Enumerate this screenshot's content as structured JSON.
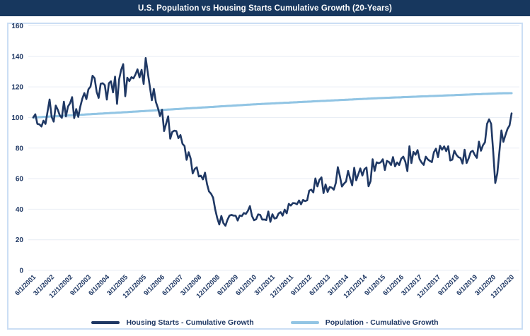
{
  "title": "U.S. Population vs Housing Starts Cumulative Growth (20-Years)",
  "colors": {
    "title_bar_bg": "#17375E",
    "title_text": "#FFFFFF",
    "housing_line": "#1F3864",
    "population_line": "#92C5E4",
    "chart_border": "#CBDEF4",
    "gridline": "#E9EEF5",
    "axis_text": "#1F3864",
    "background": "#FFFFFF"
  },
  "legend": {
    "items": [
      {
        "label": "Housing Starts - Cumulative Growth",
        "color": "#1F3864"
      },
      {
        "label": "Population - Cumulative Growth",
        "color": "#92C5E4"
      }
    ]
  },
  "chart_data": {
    "type": "line",
    "title": "U.S. Population vs Housing Starts Cumulative Growth (20-Years)",
    "x_start": "6/1/2001",
    "x_end": "12/1/2020",
    "x_frequency": "monthly",
    "x_points": 235,
    "x_tick_every_n_months": 9,
    "x_tick_labels": [
      "6/1/2001",
      "3/1/2002",
      "12/1/2002",
      "9/1/2003",
      "6/1/2004",
      "3/1/2005",
      "12/1/2005",
      "9/1/2006",
      "6/1/2007",
      "3/1/2008",
      "12/1/2008",
      "9/1/2009",
      "6/1/2010",
      "3/1/2011",
      "12/1/2011",
      "9/1/2012",
      "6/1/2013",
      "3/1/2014",
      "12/1/2014",
      "9/1/2015",
      "6/1/2016",
      "3/1/2017",
      "12/1/2017",
      "9/1/2018",
      "6/1/2019",
      "3/1/2020",
      "12/1/2020"
    ],
    "ylim": [
      0,
      160
    ],
    "y_ticks": [
      0,
      20,
      40,
      60,
      80,
      100,
      120,
      140,
      160
    ],
    "grid": "horizontal",
    "legend_position": "bottom",
    "series": [
      {
        "name": "Housing Starts - Cumulative Growth",
        "color": "#1F3864",
        "index_base": "100 = 6/1/2001",
        "values": [
          100.0,
          102.1,
          95.8,
          95.5,
          94.1,
          97.9,
          95.8,
          103.8,
          111.8,
          100.4,
          97.3,
          107.8,
          105.0,
          101.2,
          99.8,
          110.3,
          100.7,
          107.2,
          109.3,
          113.3,
          99.6,
          105.5,
          100.4,
          107.0,
          112.3,
          116.0,
          112.0,
          118.5,
          120.2,
          127.3,
          125.7,
          116.8,
          112.8,
          122.1,
          122.4,
          121.1,
          111.7,
          122.4,
          123.7,
          116.4,
          126.7,
          108.9,
          124.8,
          131.1,
          134.9,
          113.9,
          126.0,
          123.8,
          126.4,
          125.6,
          128.1,
          131.5,
          126.2,
          131.2,
          121.9,
          138.9,
          129.5,
          120.4,
          111.3,
          118.7,
          110.1,
          106.2,
          100.9,
          105.1,
          91.1,
          96.0,
          100.8,
          86.1,
          90.5,
          91.4,
          91.1,
          86.5,
          88.5,
          82.8,
          81.3,
          72.3,
          77.3,
          73.2,
          63.4,
          66.3,
          67.4,
          61.4,
          61.9,
          59.5,
          63.9,
          56.4,
          51.6,
          50.1,
          47.5,
          39.9,
          34.2,
          30.0,
          35.6,
          30.9,
          29.2,
          33.0,
          35.8,
          36.3,
          35.8,
          35.8,
          32.6,
          35.9,
          35.5,
          37.5,
          36.9,
          38.9,
          42.0,
          35.6,
          32.8,
          33.4,
          36.6,
          36.3,
          33.2,
          33.3,
          32.9,
          38.5,
          31.7,
          36.7,
          33.9,
          34.3,
          37.2,
          38.1,
          35.8,
          39.7,
          37.3,
          43.5,
          42.4,
          44.0,
          43.9,
          43.2,
          45.7,
          43.2,
          46.1,
          45.3,
          45.8,
          52.2,
          52.8,
          51.0,
          60.1,
          54.9,
          59.2,
          60.8,
          50.5,
          56.2,
          51.3,
          54.5,
          54.1,
          52.8,
          57.2,
          67.5,
          61.7,
          54.8,
          56.7,
          58.1,
          65.0,
          60.1,
          55.6,
          67.1,
          58.9,
          62.8,
          66.7,
          62.0,
          66.1,
          67.3,
          55.0,
          58.3,
          72.7,
          65.0,
          70.7,
          70.1,
          70.7,
          72.7,
          65.6,
          71.6,
          70.9,
          68.9,
          74.1,
          68.0,
          70.6,
          68.9,
          73.0,
          74.4,
          71.1,
          64.9,
          81.2,
          70.2,
          77.5,
          75.6,
          78.7,
          72.7,
          70.5,
          69.0,
          74.4,
          72.6,
          71.6,
          70.8,
          77.3,
          79.6,
          74.0,
          81.5,
          78.9,
          81.1,
          78.0,
          81.2,
          71.9,
          72.4,
          78.2,
          75.6,
          74.0,
          73.5,
          69.8,
          78.9,
          70.2,
          73.3,
          77.4,
          78.2,
          75.5,
          73.6,
          84.2,
          78.2,
          81.9,
          83.8,
          95.8,
          98.8,
          95.8,
          77.6,
          57.1,
          63.4,
          77.3,
          91.5,
          84.1,
          88.5,
          92.5,
          94.8,
          102.7
        ]
      },
      {
        "name": "Population - Cumulative Growth",
        "color": "#92C5E4",
        "index_base": "100 = 6/1/2001",
        "shape": "smooth near-linear rise",
        "anchors": [
          {
            "month_index": 0,
            "value": 100.0
          },
          {
            "month_index": 48,
            "value": 103.7
          },
          {
            "month_index": 108,
            "value": 108.6
          },
          {
            "month_index": 168,
            "value": 112.6
          },
          {
            "month_index": 228,
            "value": 115.8
          },
          {
            "month_index": 234,
            "value": 115.9
          }
        ]
      }
    ]
  }
}
